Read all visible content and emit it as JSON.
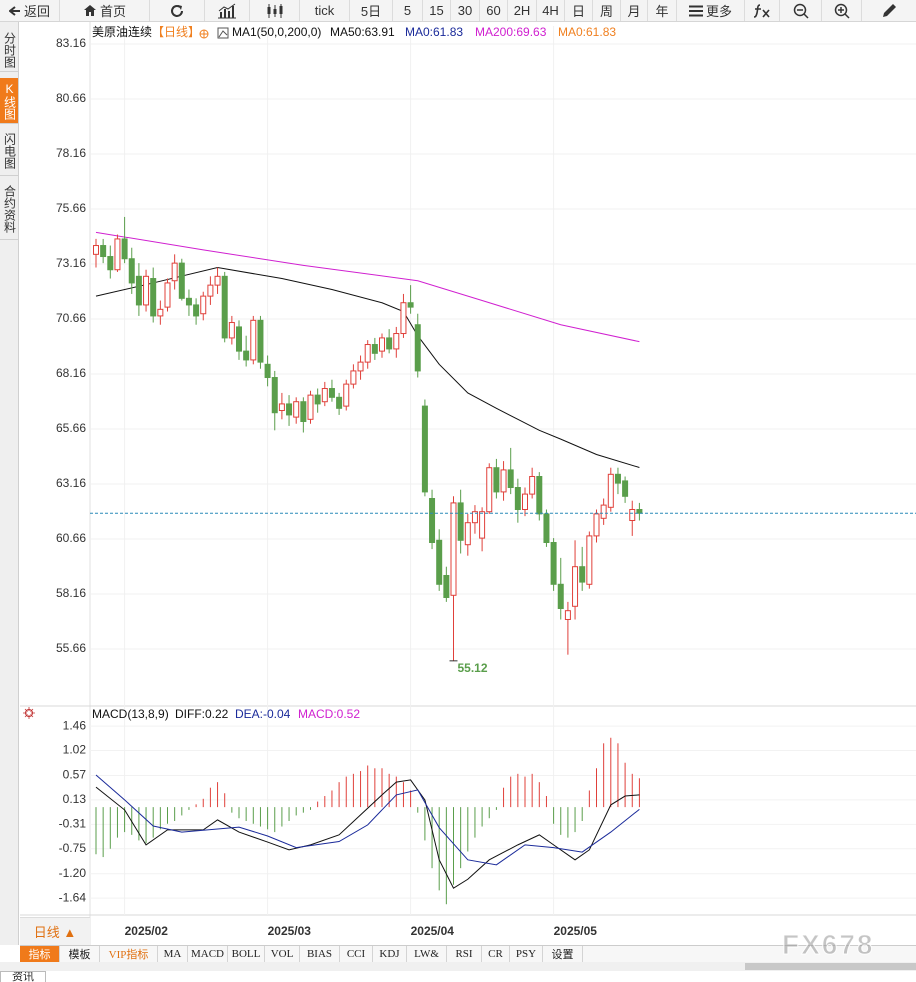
{
  "toolbar": {
    "back": "返回",
    "home": "首页",
    "periods": [
      "tick",
      "5日",
      "5",
      "15",
      "30",
      "60",
      "2H",
      "4H",
      "日",
      "周",
      "月",
      "年"
    ],
    "more": "更多"
  },
  "side_tabs": [
    "分时图",
    "K线图",
    "闪电图",
    "合约资料"
  ],
  "chart_data": [
    {
      "type": "candlestick",
      "title": "美原油连续",
      "period": "【日线】",
      "legend": [
        {
          "text": "MA1(50,0,200,0)",
          "color": "#111111"
        },
        {
          "text": "MA50:63.91",
          "color": "#111111"
        },
        {
          "text": "MA0:61.83",
          "color": "#1a2a9a"
        },
        {
          "text": "MA200:69.63",
          "color": "#d020d0"
        },
        {
          "text": "MA0:61.83",
          "color": "#f08020"
        }
      ],
      "up_color": "#e0403a",
      "down_color": "#5a9e4b",
      "ylim": [
        53.34,
        83.98
      ],
      "yticks": [
        83.16,
        80.66,
        78.16,
        75.66,
        73.16,
        70.66,
        68.16,
        65.66,
        63.16,
        60.66,
        58.16,
        55.66
      ],
      "grid": true,
      "open": [
        73.6,
        74.0,
        73.5,
        72.9,
        74.3,
        73.4,
        72.6,
        71.3,
        72.5,
        70.8,
        71.2,
        72.4,
        73.2,
        71.6,
        71.3,
        70.9,
        71.7,
        72.2,
        72.6,
        69.8,
        70.3,
        69.2,
        68.8,
        70.6,
        68.6,
        68.0,
        66.5,
        66.8,
        66.2,
        66.9,
        66.1,
        67.2,
        66.9,
        67.5,
        67.1,
        66.7,
        67.7,
        68.3,
        68.7,
        69.5,
        69.2,
        69.8,
        69.3,
        70.0,
        71.4,
        70.4,
        66.7,
        62.5,
        60.6,
        59.0,
        58.1,
        62.3,
        60.4,
        61.4,
        60.7,
        61.9,
        63.9,
        62.8,
        63.8,
        63.0,
        62.0,
        62.7,
        63.5,
        61.8,
        60.5,
        58.6,
        57.0,
        57.6,
        59.4,
        58.6,
        60.8,
        61.6,
        62.1,
        63.6,
        63.3,
        61.5,
        62.0
      ],
      "high": [
        74.3,
        74.3,
        74.0,
        74.5,
        75.3,
        73.9,
        73.2,
        72.9,
        73.0,
        71.5,
        72.5,
        73.6,
        73.4,
        72.0,
        71.6,
        71.9,
        72.6,
        73.0,
        72.8,
        70.8,
        70.6,
        69.9,
        70.8,
        70.8,
        69.0,
        68.3,
        67.3,
        67.2,
        67.1,
        67.1,
        67.4,
        67.5,
        67.8,
        67.9,
        67.3,
        67.9,
        68.6,
        69.0,
        69.7,
        69.8,
        70.0,
        70.2,
        70.3,
        71.8,
        72.2,
        70.9,
        67.0,
        62.9,
        61.1,
        59.4,
        62.6,
        62.9,
        61.8,
        62.2,
        62.1,
        64.1,
        64.3,
        64.2,
        64.8,
        63.4,
        63.0,
        63.9,
        63.7,
        62.0,
        60.7,
        59.8,
        57.8,
        60.6,
        60.3,
        61.0,
        62.0,
        62.5,
        63.9,
        63.9,
        63.5,
        62.4,
        62.3
      ],
      "low": [
        73.0,
        73.2,
        72.5,
        72.8,
        73.2,
        71.8,
        70.8,
        71.0,
        70.5,
        70.4,
        71.0,
        72.0,
        71.5,
        70.8,
        70.4,
        70.6,
        71.3,
        71.8,
        69.6,
        69.5,
        68.8,
        68.5,
        68.6,
        68.4,
        67.6,
        65.6,
        66.1,
        65.8,
        65.9,
        65.5,
        65.9,
        66.4,
        66.7,
        66.9,
        66.3,
        66.5,
        67.5,
        67.9,
        68.4,
        68.8,
        68.9,
        69.1,
        68.9,
        69.8,
        70.9,
        68.0,
        62.6,
        60.2,
        58.3,
        57.8,
        55.12,
        60.0,
        59.9,
        60.9,
        60.1,
        61.8,
        62.5,
        62.4,
        62.7,
        61.4,
        61.7,
        62.5,
        61.5,
        60.3,
        58.3,
        57.0,
        55.4,
        57.0,
        58.3,
        58.4,
        60.5,
        61.3,
        61.9,
        62.7,
        62.3,
        60.8,
        61.5
      ],
      "close": [
        74.0,
        73.5,
        72.9,
        74.3,
        73.4,
        72.3,
        71.3,
        72.6,
        70.8,
        71.1,
        72.3,
        73.2,
        71.6,
        71.3,
        70.8,
        71.7,
        72.2,
        72.6,
        69.8,
        70.5,
        69.2,
        68.8,
        70.6,
        68.7,
        68.0,
        66.4,
        66.8,
        66.3,
        66.9,
        66.0,
        67.2,
        66.8,
        67.5,
        67.1,
        66.6,
        67.7,
        68.3,
        68.7,
        69.5,
        69.1,
        69.8,
        69.3,
        70.0,
        71.4,
        71.2,
        68.3,
        62.8,
        60.5,
        58.6,
        58.0,
        62.3,
        60.6,
        61.4,
        61.9,
        61.9,
        63.9,
        62.8,
        63.8,
        63.0,
        62.0,
        62.7,
        63.5,
        61.8,
        60.5,
        58.6,
        57.5,
        57.4,
        59.4,
        58.7,
        60.8,
        61.8,
        62.2,
        63.6,
        63.2,
        62.6,
        62.0,
        61.83
      ],
      "lines": [
        {
          "color": "#111111",
          "x": [
            0,
            8,
            17,
            26,
            33,
            40,
            43,
            45,
            48,
            52,
            56,
            59,
            62,
            65,
            70,
            76
          ],
          "values": [
            71.7,
            72.3,
            73.0,
            72.5,
            72.0,
            71.4,
            71.0,
            69.9,
            68.6,
            67.3,
            66.6,
            66.1,
            65.6,
            65.2,
            64.5,
            63.91
          ]
        },
        {
          "color": "#d020d0",
          "x": [
            0,
            15,
            29,
            45,
            54,
            65,
            76
          ],
          "values": [
            74.6,
            73.8,
            73.1,
            72.4,
            71.5,
            70.4,
            69.63
          ]
        }
      ],
      "last_line_color": "#2a8ab8"
    },
    {
      "type": "macd",
      "title": "MACD(13,8,9)",
      "legend": [
        {
          "text": "DIFF:0.22",
          "color": "#111111"
        },
        {
          "text": "DEA:-0.04",
          "color": "#1a2a9a"
        },
        {
          "text": "MACD:0.52",
          "color": "#d020d0"
        }
      ],
      "ylim": [
        -1.89,
        1.57
      ],
      "yticks": [
        1.46,
        1.02,
        0.57,
        0.13,
        -0.31,
        -0.75,
        {
          "value": -1.2,
          "label": "-1.20"
        },
        -1.64
      ],
      "xticks": [
        {
          "value": 4,
          "label": "2025/02"
        },
        {
          "value": 24,
          "label": "2025/03"
        },
        {
          "value": 44,
          "label": "2025/04"
        },
        {
          "value": 64,
          "label": "2025/05"
        }
      ],
      "histogram": [
        -0.85,
        -0.9,
        -0.75,
        -0.55,
        -0.45,
        -0.5,
        -0.6,
        -0.65,
        -0.55,
        -0.4,
        -0.3,
        -0.25,
        -0.15,
        -0.05,
        0.05,
        0.15,
        0.35,
        0.45,
        0.25,
        -0.1,
        -0.2,
        -0.25,
        -0.3,
        -0.35,
        -0.4,
        -0.45,
        -0.35,
        -0.25,
        -0.15,
        -0.1,
        -0.05,
        0.1,
        0.2,
        0.3,
        0.45,
        0.55,
        0.6,
        0.65,
        0.75,
        0.7,
        0.7,
        0.6,
        0.55,
        0.45,
        0.3,
        -0.1,
        -0.6,
        -1.1,
        -1.5,
        -1.75,
        -1.4,
        -1.1,
        -0.8,
        -0.55,
        -0.35,
        -0.2,
        -0.05,
        0.35,
        0.55,
        0.6,
        0.55,
        0.6,
        0.45,
        0.2,
        -0.3,
        -0.5,
        -0.55,
        -0.45,
        -0.25,
        0.3,
        0.7,
        1.15,
        1.25,
        1.15,
        0.8,
        0.6,
        0.52
      ],
      "lines": [
        {
          "color": "#111111",
          "x": [
            0,
            4,
            7,
            10,
            15,
            17,
            20,
            24,
            27,
            30,
            34,
            37,
            40,
            42,
            44,
            46,
            48,
            50,
            52,
            55,
            59,
            62,
            64,
            67,
            69,
            72,
            74,
            76
          ],
          "values": [
            0.36,
            -0.05,
            -0.68,
            -0.41,
            -0.41,
            -0.23,
            -0.45,
            -0.63,
            -0.77,
            -0.68,
            -0.5,
            -0.14,
            0.22,
            0.45,
            0.49,
            0.13,
            -0.95,
            -1.46,
            -1.3,
            -0.95,
            -0.68,
            -0.5,
            -0.68,
            -0.95,
            -0.77,
            0.04,
            0.2,
            0.22
          ]
        },
        {
          "color": "#1a2a9a",
          "x": [
            0,
            4,
            8,
            12,
            20,
            24,
            28,
            34,
            38,
            42,
            45,
            48,
            52,
            56,
            60,
            64,
            68,
            72,
            76
          ],
          "values": [
            0.58,
            0.13,
            -0.34,
            -0.45,
            -0.36,
            -0.52,
            -0.73,
            -0.62,
            -0.32,
            0.22,
            0.31,
            -0.37,
            -0.95,
            -1.04,
            -0.68,
            -0.73,
            -0.81,
            -0.45,
            -0.04
          ]
        }
      ],
      "up_color": "#e0403a",
      "down_color": "#5a9e4b",
      "grid": true
    }
  ],
  "bottom": {
    "period_button": "日线 ▲",
    "tabs": [
      "指标",
      "模板",
      "VIP指标",
      "MA",
      "MACD",
      "BOLL",
      "VOL",
      "BIAS",
      "CCI",
      "KDJ",
      "LW&",
      "RSI",
      "CR",
      "PSY",
      "设置"
    ],
    "news_tab": "资讯",
    "watermark": "FX678"
  }
}
